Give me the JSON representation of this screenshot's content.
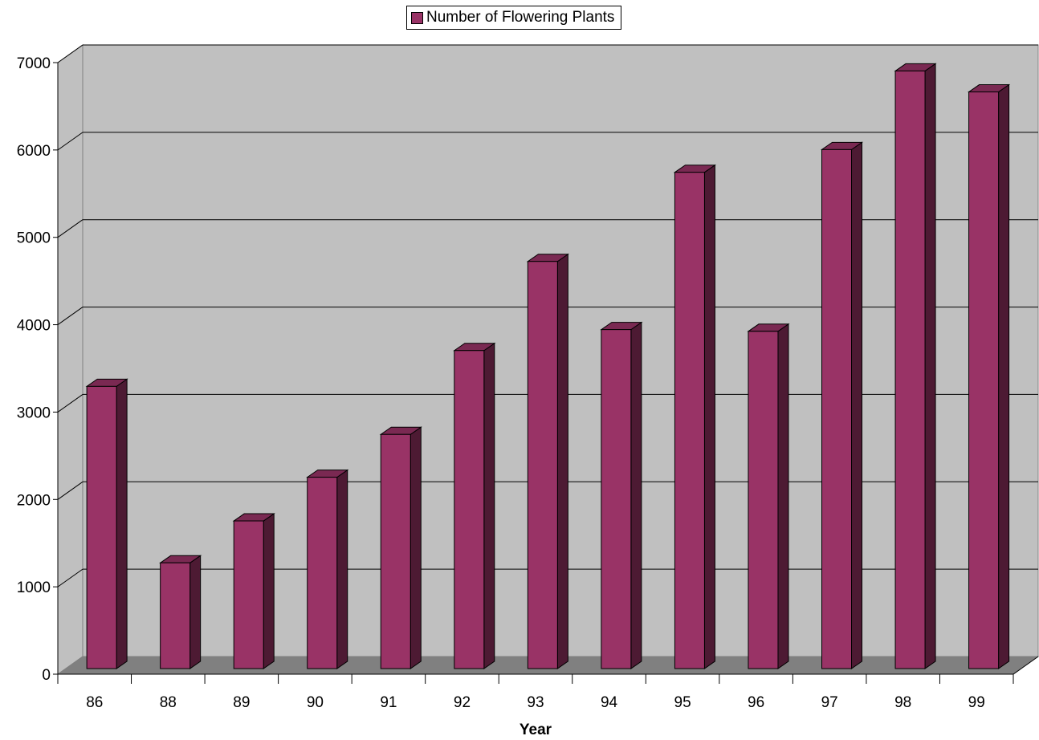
{
  "chart_data": {
    "type": "bar",
    "categories": [
      "86",
      "88",
      "89",
      "90",
      "91",
      "92",
      "93",
      "94",
      "95",
      "96",
      "97",
      "98",
      "99"
    ],
    "series": [
      {
        "name": "Number of Flowering Plants",
        "values": [
          3230,
          1210,
          1690,
          2190,
          2680,
          3640,
          4660,
          3880,
          5680,
          3860,
          5940,
          6840,
          6600
        ],
        "color": "#993366",
        "side_color": "#4d1a33"
      }
    ],
    "title": "",
    "xlabel": "Year",
    "ylabel": "",
    "ylim": [
      0,
      7000
    ],
    "yticks": [
      "0",
      "1000",
      "2000",
      "3000",
      "4000",
      "5000",
      "6000",
      "7000"
    ],
    "grid": true,
    "legend_position": "top",
    "wall_color": "#c0c0c0",
    "floor_color": "#808080"
  }
}
